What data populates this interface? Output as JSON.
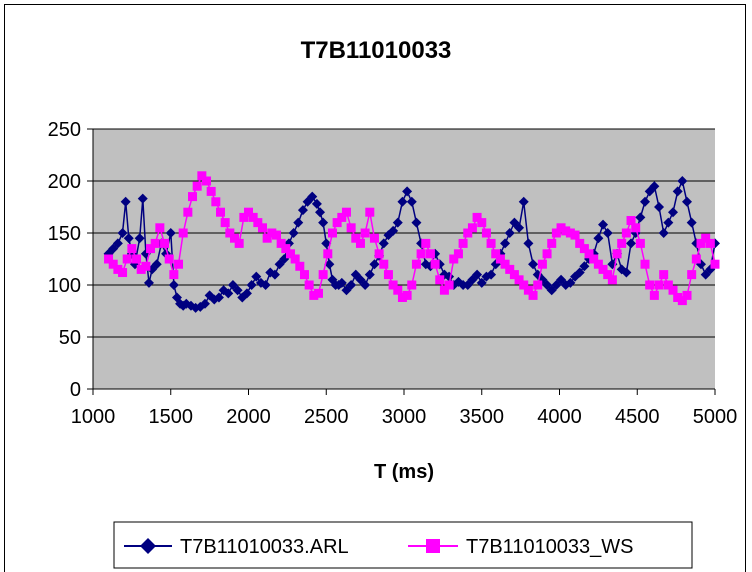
{
  "colors": {
    "plot_bg": "#c0c0c0",
    "arl": "#000080",
    "ws": "#ff00ff"
  },
  "chart_data": {
    "type": "line",
    "title": "T7B11010033",
    "xlabel": "T (ms)",
    "ylabel": "",
    "xlim": [
      1000,
      5000
    ],
    "ylim": [
      0,
      250
    ],
    "xticks": [
      1000,
      1500,
      2000,
      2500,
      3000,
      3500,
      4000,
      4500,
      5000
    ],
    "yticks": [
      0,
      50,
      100,
      150,
      200,
      250
    ],
    "grid": "horizontal",
    "legend_position": "bottom",
    "series": [
      {
        "name": "T7B11010033.ARL",
        "marker": "diamond",
        "x": [
          1100,
          1130,
          1160,
          1190,
          1210,
          1230,
          1250,
          1270,
          1300,
          1320,
          1340,
          1360,
          1380,
          1410,
          1440,
          1470,
          1500,
          1520,
          1540,
          1560,
          1580,
          1600,
          1630,
          1660,
          1690,
          1720,
          1750,
          1780,
          1810,
          1840,
          1870,
          1900,
          1930,
          1960,
          1990,
          2020,
          2050,
          2080,
          2110,
          2140,
          2170,
          2200,
          2230,
          2260,
          2290,
          2320,
          2350,
          2380,
          2410,
          2440,
          2460,
          2480,
          2500,
          2520,
          2540,
          2560,
          2580,
          2600,
          2630,
          2660,
          2690,
          2720,
          2750,
          2780,
          2810,
          2840,
          2870,
          2900,
          2930,
          2960,
          2990,
          3020,
          3050,
          3080,
          3110,
          3140,
          3170,
          3200,
          3230,
          3260,
          3290,
          3320,
          3350,
          3380,
          3410,
          3440,
          3470,
          3500,
          3530,
          3560,
          3590,
          3620,
          3650,
          3680,
          3710,
          3740,
          3770,
          3800,
          3830,
          3860,
          3890,
          3920,
          3950,
          3980,
          4010,
          4040,
          4070,
          4100,
          4130,
          4160,
          4190,
          4220,
          4250,
          4280,
          4310,
          4340,
          4370,
          4400,
          4430,
          4460,
          4490,
          4520,
          4550,
          4580,
          4610,
          4640,
          4670,
          4700,
          4730,
          4760,
          4790,
          4820,
          4850,
          4880,
          4910,
          4940,
          4970,
          5000
        ],
        "y": [
          130,
          135,
          140,
          150,
          180,
          145,
          130,
          120,
          145,
          183,
          130,
          102,
          115,
          120,
          140,
          130,
          150,
          100,
          88,
          82,
          80,
          82,
          80,
          78,
          79,
          82,
          90,
          86,
          88,
          95,
          92,
          100,
          95,
          88,
          92,
          100,
          108,
          102,
          100,
          112,
          110,
          120,
          125,
          140,
          150,
          160,
          172,
          180,
          185,
          178,
          170,
          160,
          140,
          120,
          105,
          100,
          100,
          102,
          95,
          100,
          110,
          105,
          100,
          110,
          120,
          128,
          140,
          148,
          152,
          160,
          180,
          190,
          180,
          160,
          140,
          120,
          118,
          130,
          120,
          110,
          108,
          100,
          103,
          100,
          100,
          105,
          110,
          102,
          108,
          110,
          120,
          130,
          140,
          150,
          160,
          155,
          180,
          140,
          120,
          110,
          105,
          100,
          95,
          100,
          105,
          100,
          102,
          108,
          112,
          118,
          125,
          130,
          145,
          158,
          150,
          120,
          130,
          115,
          112,
          140,
          150,
          165,
          180,
          190,
          195,
          175,
          150,
          160,
          170,
          190,
          200,
          180,
          160,
          140,
          120,
          110,
          115,
          140
        ]
      },
      {
        "name": "T7B11010033_WS",
        "marker": "square",
        "x": [
          1100,
          1130,
          1160,
          1190,
          1220,
          1250,
          1280,
          1310,
          1340,
          1370,
          1400,
          1430,
          1460,
          1490,
          1520,
          1550,
          1580,
          1610,
          1640,
          1670,
          1700,
          1730,
          1760,
          1790,
          1820,
          1850,
          1880,
          1910,
          1940,
          1970,
          2000,
          2030,
          2060,
          2090,
          2120,
          2150,
          2180,
          2210,
          2240,
          2270,
          2300,
          2330,
          2360,
          2390,
          2420,
          2450,
          2480,
          2510,
          2540,
          2570,
          2600,
          2630,
          2660,
          2690,
          2720,
          2750,
          2780,
          2810,
          2840,
          2870,
          2900,
          2930,
          2960,
          2990,
          3020,
          3050,
          3080,
          3110,
          3140,
          3170,
          3200,
          3230,
          3260,
          3290,
          3320,
          3350,
          3380,
          3410,
          3440,
          3470,
          3500,
          3530,
          3560,
          3590,
          3620,
          3650,
          3680,
          3710,
          3740,
          3770,
          3800,
          3830,
          3860,
          3890,
          3920,
          3950,
          3980,
          4010,
          4040,
          4070,
          4100,
          4130,
          4160,
          4190,
          4220,
          4250,
          4280,
          4310,
          4340,
          4370,
          4400,
          4430,
          4460,
          4490,
          4520,
          4550,
          4580,
          4610,
          4640,
          4670,
          4700,
          4730,
          4760,
          4790,
          4820,
          4850,
          4880,
          4910,
          4940,
          4970,
          5000
        ],
        "y": [
          125,
          120,
          115,
          112,
          125,
          135,
          125,
          115,
          118,
          135,
          140,
          155,
          140,
          125,
          110,
          120,
          150,
          170,
          185,
          195,
          205,
          200,
          190,
          180,
          170,
          160,
          150,
          145,
          140,
          165,
          170,
          165,
          160,
          155,
          145,
          150,
          148,
          140,
          135,
          130,
          125,
          118,
          110,
          100,
          90,
          92,
          110,
          130,
          150,
          160,
          165,
          170,
          155,
          145,
          140,
          150,
          170,
          145,
          130,
          120,
          110,
          100,
          95,
          88,
          90,
          100,
          120,
          130,
          140,
          130,
          120,
          105,
          95,
          100,
          125,
          130,
          140,
          150,
          155,
          165,
          160,
          150,
          140,
          130,
          125,
          120,
          115,
          110,
          105,
          100,
          95,
          90,
          100,
          120,
          130,
          140,
          150,
          155,
          152,
          150,
          148,
          140,
          135,
          130,
          125,
          120,
          115,
          110,
          105,
          130,
          140,
          150,
          162,
          155,
          140,
          120,
          100,
          90,
          100,
          110,
          100,
          95,
          88,
          85,
          90,
          110,
          125,
          140,
          145,
          140,
          120
        ]
      }
    ]
  }
}
